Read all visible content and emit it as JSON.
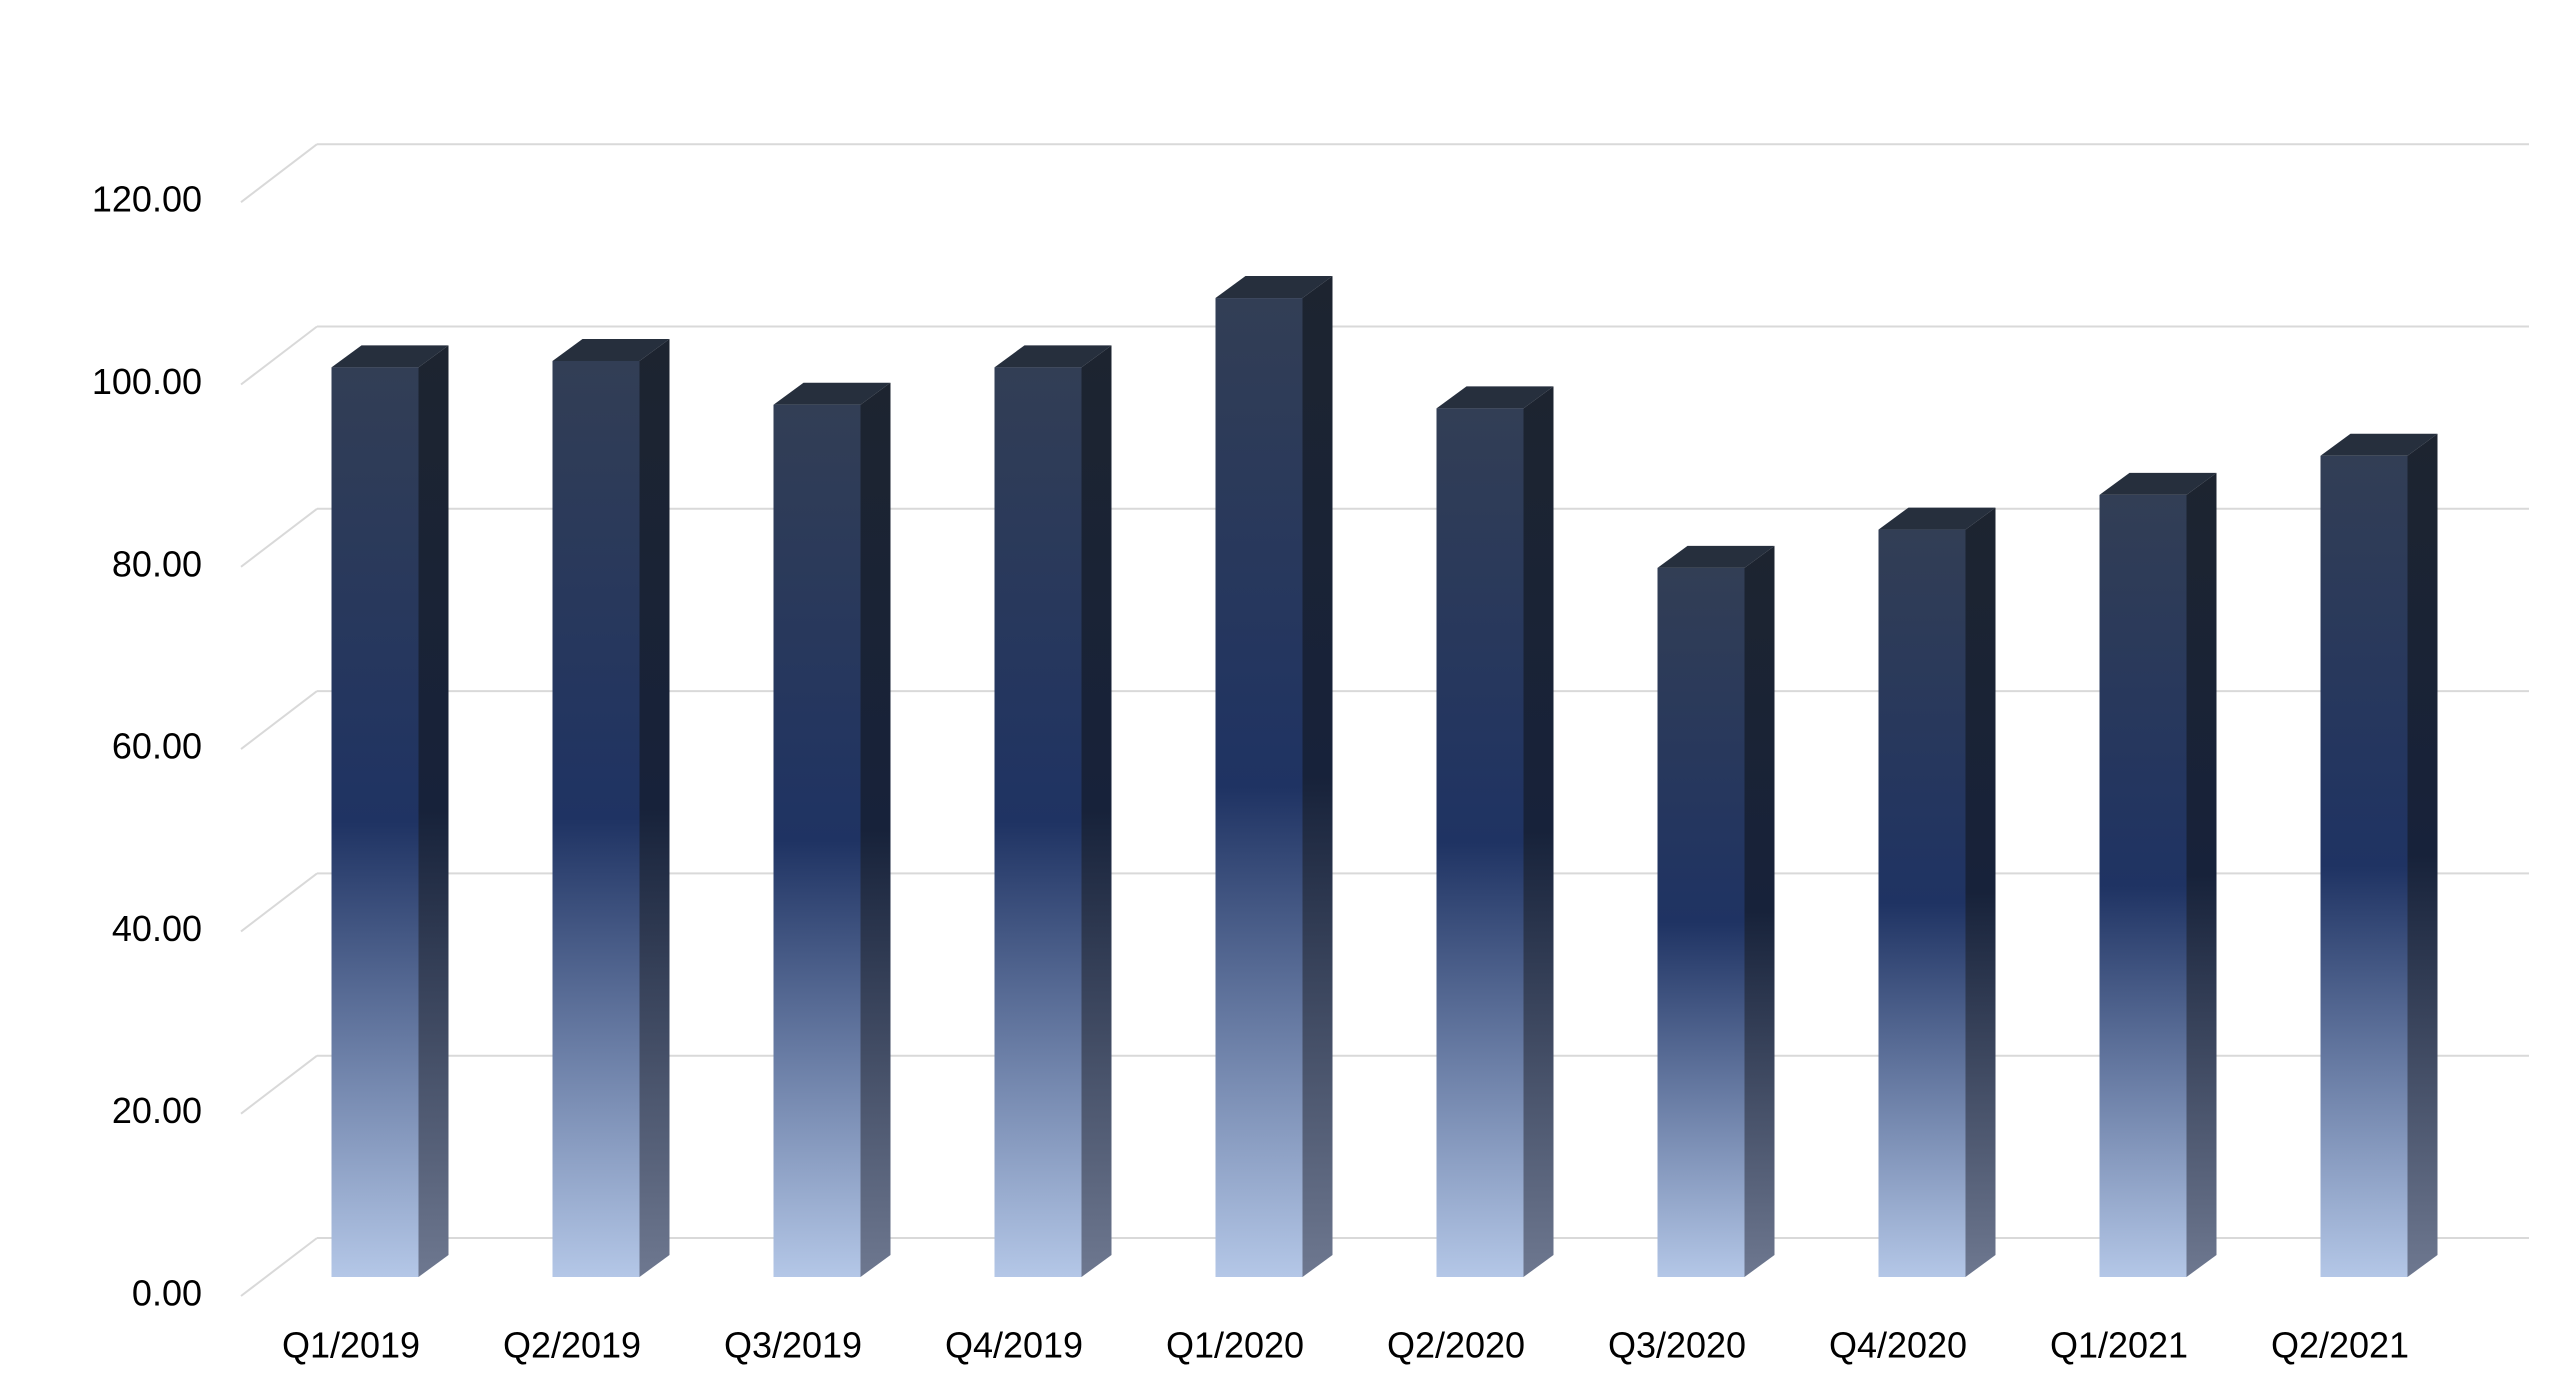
{
  "chart_data": {
    "type": "bar3d",
    "categories": [
      "Q1/2019",
      "Q2/2019",
      "Q3/2019",
      "Q4/2019",
      "Q1/2020",
      "Q2/2020",
      "Q3/2020",
      "Q4/2020",
      "Q1/2021",
      "Q2/2021"
    ],
    "values": [
      99.8,
      100.5,
      95.7,
      99.8,
      107.4,
      95.3,
      77.8,
      82.0,
      85.8,
      90.1
    ],
    "ylim": [
      0,
      120
    ],
    "yticks": [
      {
        "value": 0,
        "label": "0.00"
      },
      {
        "value": 20,
        "label": "20.00"
      },
      {
        "value": 40,
        "label": "40.00"
      },
      {
        "value": 60,
        "label": "60.00"
      },
      {
        "value": 80,
        "label": "80.00"
      },
      {
        "value": 100,
        "label": "100.00"
      },
      {
        "value": 120,
        "label": "120.00"
      }
    ],
    "grid": true,
    "colors": {
      "top": "#323e55",
      "middle": "#1f3363",
      "bottom": "#b4c7e7",
      "side_top": "#1d2430",
      "side_bottom": "#6e7890",
      "cap": "#262f3d"
    }
  }
}
